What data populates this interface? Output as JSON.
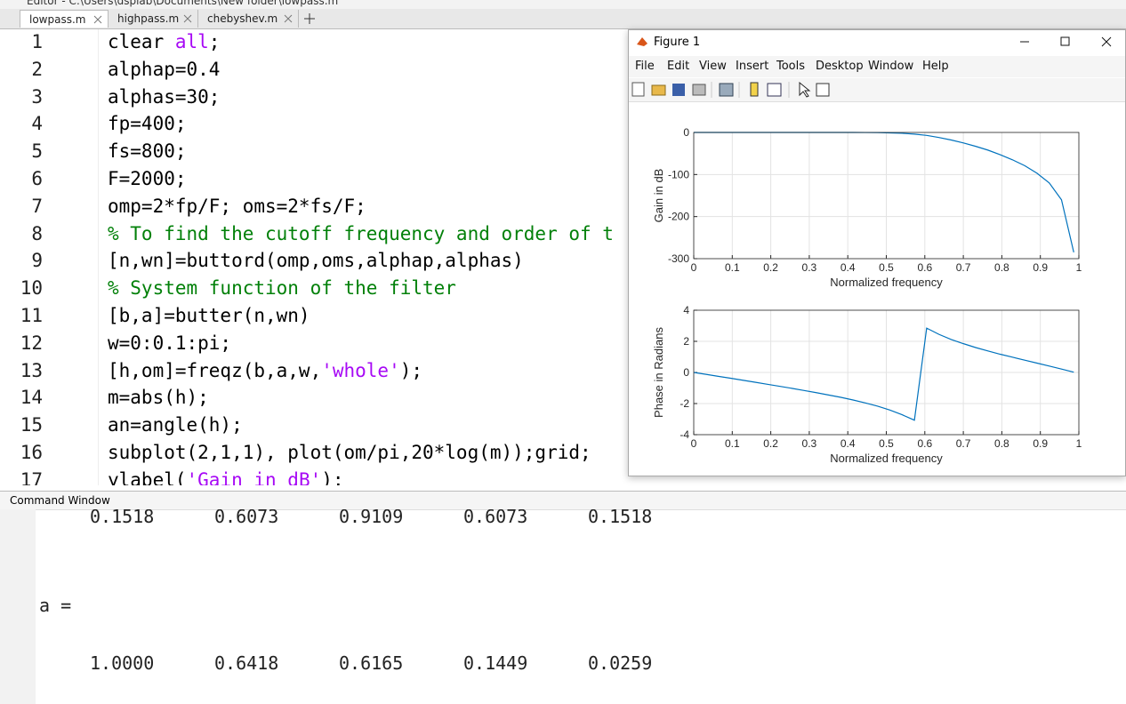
{
  "editor": {
    "title": "Editor - C:\\Users\\dsplab\\Documents\\New folder\\lowpass.m",
    "tabs": [
      "lowpass.m",
      "highpass.m",
      "chebyshev.m"
    ],
    "lines": [
      {
        "number": "1",
        "parts": [
          {
            "text": "clear "
          },
          {
            "text": "all",
            "color": "#a709f5"
          },
          {
            "text": ";"
          }
        ]
      },
      {
        "number": "2",
        "parts": [
          {
            "text": "alphap=0.4"
          }
        ]
      },
      {
        "number": "3",
        "parts": [
          {
            "text": "alphas=30;"
          }
        ]
      },
      {
        "number": "4",
        "parts": [
          {
            "text": "fp=400;"
          }
        ]
      },
      {
        "number": "5",
        "parts": [
          {
            "text": "fs=800;"
          }
        ]
      },
      {
        "number": "6",
        "parts": [
          {
            "text": "F=2000;"
          }
        ]
      },
      {
        "number": "7",
        "parts": [
          {
            "text": "omp=2*fp/F; oms=2*fs/F;"
          }
        ]
      },
      {
        "number": "8",
        "parts": [
          {
            "text": "% To find the cutoff frequency and order of t",
            "color": "#028009"
          }
        ]
      },
      {
        "number": "9",
        "parts": [
          {
            "text": "[n,wn]=buttord(omp,oms,alphap,alphas)"
          }
        ]
      },
      {
        "number": "10",
        "parts": [
          {
            "text": "% System function of the filter",
            "color": "#028009"
          }
        ]
      },
      {
        "number": "11",
        "parts": [
          {
            "text": "[b,a]=butter(n,wn)"
          }
        ]
      },
      {
        "number": "12",
        "parts": [
          {
            "text": "w=0:0.1:pi;"
          }
        ]
      },
      {
        "number": "13",
        "parts": [
          {
            "text": "[h,om]=freqz(b,a,w,"
          },
          {
            "text": "'whole'",
            "color": "#a709f5"
          },
          {
            "text": ");"
          }
        ]
      },
      {
        "number": "14",
        "parts": [
          {
            "text": "m=abs(h);"
          }
        ]
      },
      {
        "number": "15",
        "parts": [
          {
            "text": "an=angle(h);"
          }
        ]
      },
      {
        "number": "16",
        "parts": [
          {
            "text": "subplot(2,1,1), plot(om/pi,20*log(m));grid;"
          }
        ]
      },
      {
        "number": "17",
        "parts": [
          {
            "text": "ylabel("
          },
          {
            "text": "'Gain in dB'",
            "color": "#a709f5"
          },
          {
            "text": ");"
          }
        ]
      }
    ]
  },
  "command_window": {
    "title": "Command Window",
    "lines": [
      {
        "values": [
          "0.1518",
          "0.6073",
          "0.9109",
          "0.6073",
          "0.1518"
        ]
      },
      {
        "text": "a ="
      },
      {
        "values": [
          "1.0000",
          "0.6418",
          "0.6165",
          "0.1449",
          "0.0259"
        ]
      }
    ]
  },
  "figure": {
    "title": "Figure 1",
    "menus": [
      "File",
      "Edit",
      "View",
      "Insert",
      "Tools",
      "Desktop",
      "Window",
      "Help"
    ]
  },
  "chart_data": [
    {
      "type": "line",
      "xlabel": "Normalized frequency",
      "ylabel": "Gain in dB",
      "color": "#0072bd",
      "grid": true,
      "x": [
        0,
        0.0318,
        0.0637,
        0.0955,
        0.1273,
        0.1592,
        0.191,
        0.2228,
        0.2546,
        0.2865,
        0.3183,
        0.3501,
        0.382,
        0.4138,
        0.4456,
        0.4775,
        0.5093,
        0.5411,
        0.573,
        0.6048,
        0.6366,
        0.6685,
        0.7003,
        0.7321,
        0.7639,
        0.7958,
        0.8276,
        0.8594,
        0.8913,
        0.9231,
        0.9549,
        0.9868
      ],
      "values": [
        0,
        0,
        0,
        0,
        0,
        0,
        0,
        0,
        0,
        0,
        0,
        0,
        0,
        0,
        -0.1,
        -0.4,
        -1,
        -2,
        -4,
        -7,
        -12,
        -18,
        -25,
        -33,
        -42,
        -53,
        -65,
        -79,
        -97,
        -120,
        -160,
        -285
      ],
      "xlim": [
        0,
        1
      ],
      "xticks": [
        0,
        0.1,
        0.2,
        0.3,
        0.4,
        0.5,
        0.6,
        0.7,
        0.8,
        0.9,
        1
      ],
      "ylim": [
        -300,
        0
      ],
      "yticks": [
        -300,
        -200,
        -100,
        0
      ]
    },
    {
      "type": "line",
      "xlabel": "Normalized frequency",
      "ylabel": "Phase in Radians",
      "color": "#0072bd",
      "grid": true,
      "x": [
        0,
        0.0318,
        0.0637,
        0.0955,
        0.1273,
        0.1592,
        0.191,
        0.2228,
        0.2546,
        0.2865,
        0.3183,
        0.3501,
        0.382,
        0.4138,
        0.4456,
        0.4775,
        0.5093,
        0.5411,
        0.573,
        0.6048,
        0.6366,
        0.6685,
        0.7003,
        0.7321,
        0.7639,
        0.7958,
        0.8276,
        0.8594,
        0.8913,
        0.9231,
        0.9549,
        0.9868
      ],
      "values": [
        0,
        -0.12,
        -0.25,
        -0.37,
        -0.5,
        -0.63,
        -0.76,
        -0.89,
        -1.02,
        -1.16,
        -1.3,
        -1.45,
        -1.6,
        -1.77,
        -1.96,
        -2.17,
        -2.42,
        -2.72,
        -3.07,
        2.85,
        2.45,
        2.12,
        1.85,
        1.6,
        1.38,
        1.17,
        0.98,
        0.79,
        0.6,
        0.41,
        0.22,
        0.02
      ],
      "xlim": [
        0,
        1
      ],
      "xticks": [
        0,
        0.1,
        0.2,
        0.3,
        0.4,
        0.5,
        0.6,
        0.7,
        0.8,
        0.9,
        1
      ],
      "ylim": [
        -4,
        4
      ],
      "yticks": [
        -4,
        -2,
        0,
        2,
        4
      ]
    }
  ]
}
